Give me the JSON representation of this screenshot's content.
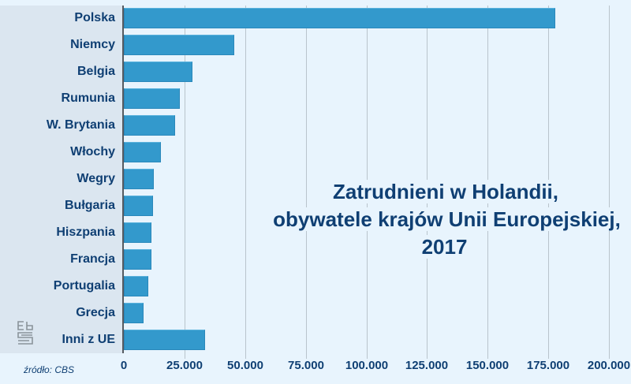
{
  "chart_data": {
    "type": "bar",
    "orientation": "horizontal",
    "title": "Zatrudnieni w Holandii, obywatele krajów Unii Europejskiej, 2017",
    "title_lines": [
      "Zatrudnieni w Holandii,",
      "obywatele krajów Unii Europejskiej, 2017"
    ],
    "categories": [
      "Polska",
      "Niemcy",
      "Belgia",
      "Rumunia",
      "W. Brytania",
      "Włochy",
      "Wegry",
      "Bułgaria",
      "Hiszpania",
      "Francja",
      "Portugalia",
      "Grecja",
      "Inni z UE"
    ],
    "values": [
      178000,
      45500,
      28300,
      23100,
      21100,
      15300,
      12400,
      12000,
      11400,
      11400,
      10100,
      8100,
      33500
    ],
    "xlabel": "",
    "ylabel": "",
    "xlim": [
      0,
      200000
    ],
    "x_ticks": [
      "0",
      "25.000",
      "50.000",
      "75.000",
      "100.000",
      "125.000",
      "150.000",
      "175.000",
      "200.000"
    ],
    "x_tick_values": [
      0,
      25000,
      50000,
      75000,
      100000,
      125000,
      150000,
      175000,
      200000
    ],
    "grid": true,
    "bar_color": "#3399cc",
    "source": "źródło: CBS"
  },
  "colors": {
    "bar": "#3399cc",
    "text": "#0f3f73",
    "background": "#e8f4fd",
    "label_panel": "#dbe6f0"
  },
  "logo": {
    "icon": "cbs-logo-icon"
  }
}
